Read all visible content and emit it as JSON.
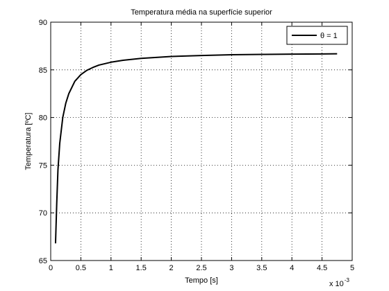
{
  "chart_data": {
    "type": "line",
    "title": "Temperatura média na superfície superior",
    "xlabel": "Tempo [s]",
    "ylabel": "Temperatura [ºC]",
    "x_multiplier_label": "x 10",
    "x_multiplier_exponent": "-3",
    "xlim": [
      0,
      5
    ],
    "ylim": [
      65,
      90
    ],
    "x_ticks": [
      0,
      0.5,
      1,
      1.5,
      2,
      2.5,
      3,
      3.5,
      4,
      4.5,
      5
    ],
    "x_tick_labels": [
      "0",
      "0.5",
      "1",
      "1.5",
      "2",
      "2.5",
      "3",
      "3.5",
      "4",
      "4.5",
      "5"
    ],
    "y_ticks": [
      65,
      70,
      75,
      80,
      85,
      90
    ],
    "y_tick_labels": [
      "65",
      "70",
      "75",
      "80",
      "85",
      "90"
    ],
    "grid": true,
    "legend_position": "top-right",
    "series": [
      {
        "name": "θ = 1",
        "color": "#000000",
        "x": [
          0.08,
          0.1,
          0.12,
          0.15,
          0.2,
          0.25,
          0.3,
          0.4,
          0.5,
          0.6,
          0.7,
          0.8,
          1.0,
          1.2,
          1.5,
          2.0,
          2.5,
          3.0,
          3.5,
          4.0,
          4.5,
          4.75
        ],
        "y": [
          66.8,
          71.0,
          74.5,
          77.3,
          80.0,
          81.5,
          82.5,
          83.8,
          84.5,
          84.95,
          85.25,
          85.5,
          85.8,
          86.0,
          86.2,
          86.4,
          86.5,
          86.58,
          86.62,
          86.65,
          86.67,
          86.68
        ]
      }
    ]
  }
}
